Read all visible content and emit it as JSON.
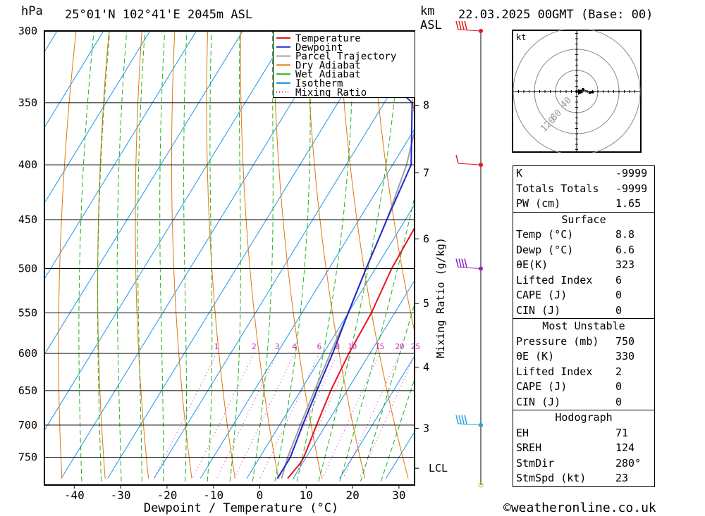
{
  "header": {
    "pressure_unit": "hPa",
    "location": "25°01'N  102°41'E  2045m  ASL",
    "km_unit": "km",
    "asl_unit": "ASL",
    "datetime": "22.03.2025  00GMT  (Base: 00)"
  },
  "hodograph_unit": "kt",
  "footer": {
    "copyright": "©weatheronline.co.uk"
  },
  "colors": {
    "temperature": "#e8141e",
    "dewpoint": "#1e28d2",
    "parcel": "#a0a0a0",
    "dry_adiabat": "#e0780a",
    "wet_adiabat": "#1eb41e",
    "isotherm": "#1e96e6",
    "mixing_ratio": "#d21ec8",
    "wind_red": "#e8141e",
    "wind_purple": "#8c1ec8",
    "wind_cyan": "#1ea0e6"
  },
  "legend": [
    "Temperature",
    "Dewpoint",
    "Parcel Trajectory",
    "Dry Adiabat",
    "Wet Adiabat",
    "Isotherm",
    "Mixing Ratio"
  ],
  "indices": {
    "general": [
      {
        "label": "K",
        "value": "-9999"
      },
      {
        "label": "Totals Totals",
        "value": "-9999"
      },
      {
        "label": "PW (cm)",
        "value": "1.65"
      }
    ],
    "surface": {
      "title": "Surface",
      "rows": [
        {
          "label": "Temp (°C)",
          "value": "8.8"
        },
        {
          "label": "Dewp (°C)",
          "value": "6.6"
        },
        {
          "label": "θE(K)",
          "value": "323"
        },
        {
          "label": "Lifted Index",
          "value": "6"
        },
        {
          "label": "CAPE (J)",
          "value": "0"
        },
        {
          "label": "CIN (J)",
          "value": "0"
        }
      ]
    },
    "most_unstable": {
      "title": "Most Unstable",
      "rows": [
        {
          "label": "Pressure (mb)",
          "value": "750"
        },
        {
          "label": "θE (K)",
          "value": "330"
        },
        {
          "label": "Lifted Index",
          "value": "2"
        },
        {
          "label": "CAPE (J)",
          "value": "0"
        },
        {
          "label": "CIN (J)",
          "value": "0"
        }
      ]
    },
    "hodograph": {
      "title": "Hodograph",
      "rows": [
        {
          "label": "EH",
          "value": "71"
        },
        {
          "label": "SREH",
          "value": "124"
        },
        {
          "label": "StmDir",
          "value": "280°"
        },
        {
          "label": "StmSpd (kt)",
          "value": "23"
        }
      ]
    }
  },
  "chart_data": [
    {
      "type": "line",
      "xlabel": "Dewpoint / Temperature (°C)",
      "x_ticks": [
        -40,
        -30,
        -20,
        -10,
        0,
        10,
        20,
        30
      ],
      "pressure_levels": [
        300,
        350,
        400,
        450,
        500,
        550,
        600,
        650,
        700,
        750
      ],
      "xlim": [
        -47,
        33
      ],
      "ylim_hPa": [
        300,
        785
      ],
      "y_scale": "log",
      "right_axis_label": "Mixing Ratio (g/kg)",
      "height_ticks_km": [
        3,
        4,
        5,
        6,
        7,
        8
      ],
      "lcl_label": "LCL",
      "lcl_pressure_hPa": 768,
      "mixing_ratio_labels": [
        "1",
        "2",
        "3",
        "4",
        "6",
        "8",
        "10",
        "15",
        "20",
        "25"
      ],
      "mixing_ratio_values": [
        1,
        2,
        3,
        4,
        6,
        8,
        10,
        15,
        20,
        25
      ],
      "series": [
        {
          "name": "Temperature",
          "points": [
            [
              300,
              -0.5
            ],
            [
              340,
              -0.5
            ],
            [
              350,
              0
            ],
            [
              400,
              2
            ],
            [
              450,
              3
            ],
            [
              500,
              3.5
            ],
            [
              550,
              5
            ],
            [
              600,
              5.5
            ],
            [
              650,
              6.5
            ],
            [
              700,
              8
            ],
            [
              750,
              9.5
            ],
            [
              760,
              9.5
            ],
            [
              785,
              8.8
            ]
          ]
        },
        {
          "name": "Dewpoint",
          "points": [
            [
              300,
              -40
            ],
            [
              350,
              -14
            ],
            [
              400,
              -6
            ],
            [
              450,
              -4
            ],
            [
              500,
              -2
            ],
            [
              550,
              0
            ],
            [
              600,
              2
            ],
            [
              650,
              3.5
            ],
            [
              700,
              5
            ],
            [
              750,
              6.6
            ],
            [
              785,
              6.6
            ]
          ]
        },
        {
          "name": "Parcel Trajectory",
          "points": [
            [
              300,
              -25
            ],
            [
              350,
              -12
            ],
            [
              400,
              -7
            ],
            [
              450,
              -4
            ],
            [
              500,
              -2
            ],
            [
              550,
              0
            ],
            [
              600,
              1.5
            ],
            [
              650,
              3
            ],
            [
              700,
              4.5
            ],
            [
              750,
              6
            ],
            [
              785,
              7.5
            ]
          ]
        }
      ],
      "grid": true,
      "legend_position": "top-right"
    },
    {
      "type": "line",
      "title": "hodograph",
      "unit": "kt",
      "ring_labels": [
        "40",
        "80",
        "120"
      ],
      "ring_values": [
        40,
        80,
        120
      ],
      "series": [
        {
          "name": "",
          "points_kt": [
            [
              0,
              0
            ],
            [
              6,
              1
            ],
            [
              12,
              4
            ],
            [
              25,
              -2
            ],
            [
              30,
              -1
            ]
          ]
        }
      ],
      "storm_motion_kt": [
        8,
        -1
      ]
    }
  ],
  "wind_barbs": [
    {
      "pressure_hPa": 300,
      "color": "wind_red"
    },
    {
      "pressure_hPa": 400,
      "color": "wind_red"
    },
    {
      "pressure_hPa": 500,
      "color": "wind_purple"
    },
    {
      "pressure_hPa": 700,
      "color": "wind_cyan"
    }
  ]
}
